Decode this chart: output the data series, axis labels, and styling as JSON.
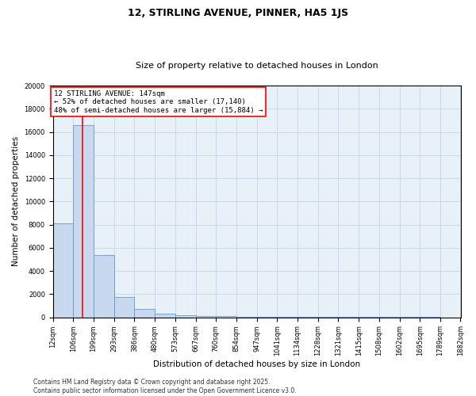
{
  "title": "12, STIRLING AVENUE, PINNER, HA5 1JS",
  "subtitle": "Size of property relative to detached houses in London",
  "xlabel": "Distribution of detached houses by size in London",
  "ylabel": "Number of detached properties",
  "bar_color": "#c8d8ee",
  "bar_edge_color": "#6699cc",
  "grid_color": "#c8d8ee",
  "background_color": "#e8f0f8",
  "redline_color": "red",
  "redline_x": 147,
  "annotation_text": "12 STIRLING AVENUE: 147sqm\n← 52% of detached houses are smaller (17,140)\n48% of semi-detached houses are larger (15,884) →",
  "annotation_box_color": "red",
  "annotation_fill": "white",
  "bins": [
    12,
    106,
    199,
    293,
    386,
    480,
    573,
    667,
    760,
    854,
    947,
    1041,
    1134,
    1228,
    1321,
    1415,
    1508,
    1602,
    1695,
    1789,
    1882
  ],
  "counts": [
    8100,
    16600,
    5350,
    1750,
    700,
    330,
    200,
    140,
    95,
    70,
    55,
    45,
    35,
    28,
    22,
    18,
    13,
    10,
    8,
    6
  ],
  "ylim": [
    0,
    20000
  ],
  "yticks": [
    0,
    2000,
    4000,
    6000,
    8000,
    10000,
    12000,
    14000,
    16000,
    18000,
    20000
  ],
  "title_fontsize": 9,
  "subtitle_fontsize": 8,
  "axis_label_fontsize": 7.5,
  "tick_fontsize": 6,
  "annotation_fontsize": 6.5,
  "footer_text": "Contains HM Land Registry data © Crown copyright and database right 2025.\nContains public sector information licensed under the Open Government Licence v3.0.",
  "footer_fontsize": 5.5
}
